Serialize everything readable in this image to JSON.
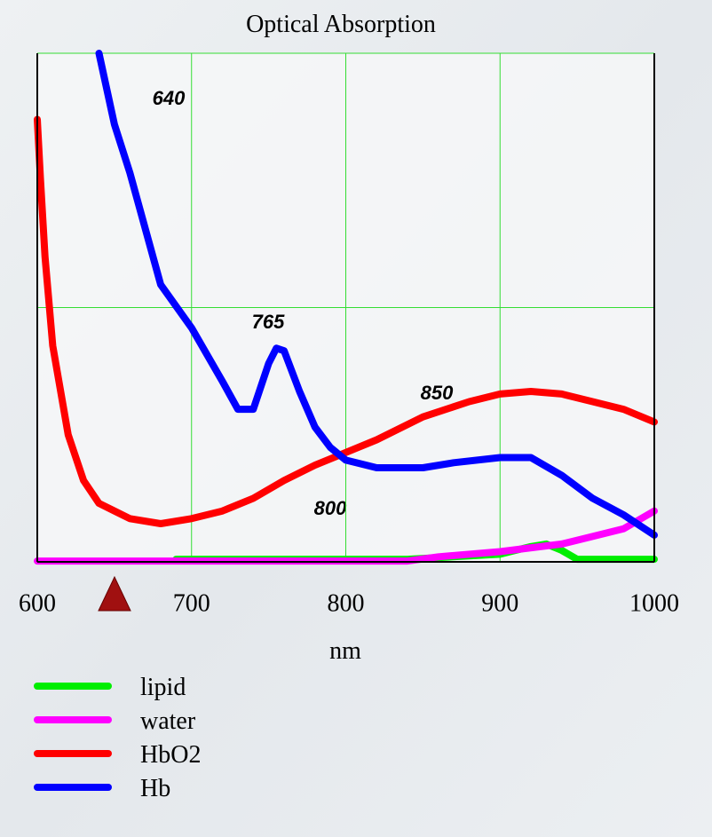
{
  "chart_data": {
    "type": "line",
    "title": "Optical Absorption",
    "x_label": "nm",
    "xlim": [
      600,
      1000
    ],
    "xticks": [
      600,
      700,
      800,
      900,
      1000
    ],
    "ylim": [
      0,
      2
    ],
    "yticks": [
      0,
      1,
      2
    ],
    "y_tick_labels": false,
    "grid": true,
    "grid_color": "#33dd33",
    "annotations": [
      "640",
      "765",
      "850",
      "800"
    ],
    "series": [
      {
        "name": "lipid",
        "color": "#00ee00",
        "x": [
          690,
          760,
          840,
          900,
          920,
          930,
          940,
          950,
          1000
        ],
        "values": [
          0.01,
          0.01,
          0.01,
          0.03,
          0.06,
          0.07,
          0.045,
          0.01,
          0.01
        ]
      },
      {
        "name": "water",
        "color": "#ff00ff",
        "x": [
          600,
          700,
          840,
          860,
          900,
          940,
          960,
          980,
          1000
        ],
        "values": [
          0.003,
          0.003,
          0.003,
          0.02,
          0.04,
          0.07,
          0.1,
          0.13,
          0.2
        ]
      },
      {
        "name": "HbO2",
        "color": "#ff0000",
        "x": [
          600,
          602,
          605,
          610,
          620,
          630,
          640,
          660,
          680,
          700,
          720,
          740,
          760,
          780,
          800,
          820,
          850,
          880,
          900,
          920,
          940,
          960,
          980,
          1000
        ],
        "values": [
          1.74,
          1.51,
          1.2,
          0.85,
          0.5,
          0.32,
          0.23,
          0.17,
          0.15,
          0.17,
          0.2,
          0.25,
          0.32,
          0.38,
          0.43,
          0.48,
          0.57,
          0.63,
          0.66,
          0.67,
          0.66,
          0.63,
          0.6,
          0.55
        ]
      },
      {
        "name": "Hb",
        "color": "#0000ff",
        "x": [
          640,
          650,
          660,
          680,
          700,
          720,
          730,
          740,
          750,
          755,
          760,
          770,
          780,
          790,
          800,
          820,
          850,
          870,
          900,
          920,
          940,
          960,
          980,
          1000
        ],
        "values": [
          2.0,
          1.72,
          1.53,
          1.09,
          0.92,
          0.71,
          0.6,
          0.6,
          0.78,
          0.84,
          0.83,
          0.67,
          0.53,
          0.45,
          0.4,
          0.37,
          0.37,
          0.39,
          0.41,
          0.41,
          0.34,
          0.25,
          0.185,
          0.105
        ]
      }
    ]
  }
}
